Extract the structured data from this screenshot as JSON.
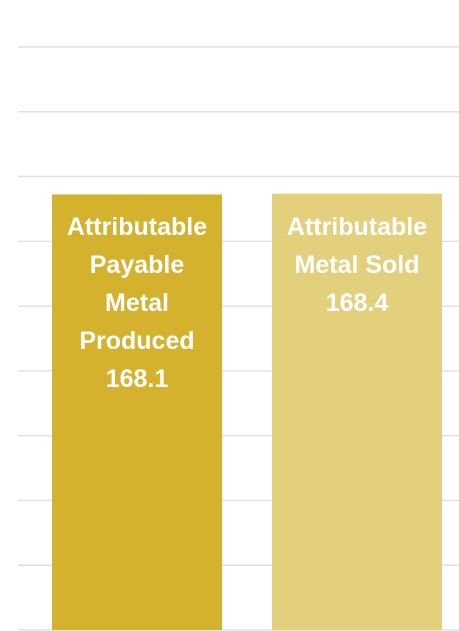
{
  "chart_data": {
    "type": "bar",
    "categories": [
      "Attributable Payable Metal Produced",
      "Attributable Metal Sold"
    ],
    "values": [
      168.1,
      168.4
    ],
    "colors": [
      "#d4b22e",
      "#e3d07c"
    ],
    "ylim": [
      0,
      225
    ],
    "yticks": [
      0,
      25,
      50,
      75,
      100,
      125,
      150,
      175,
      200,
      225
    ],
    "grid": true
  }
}
